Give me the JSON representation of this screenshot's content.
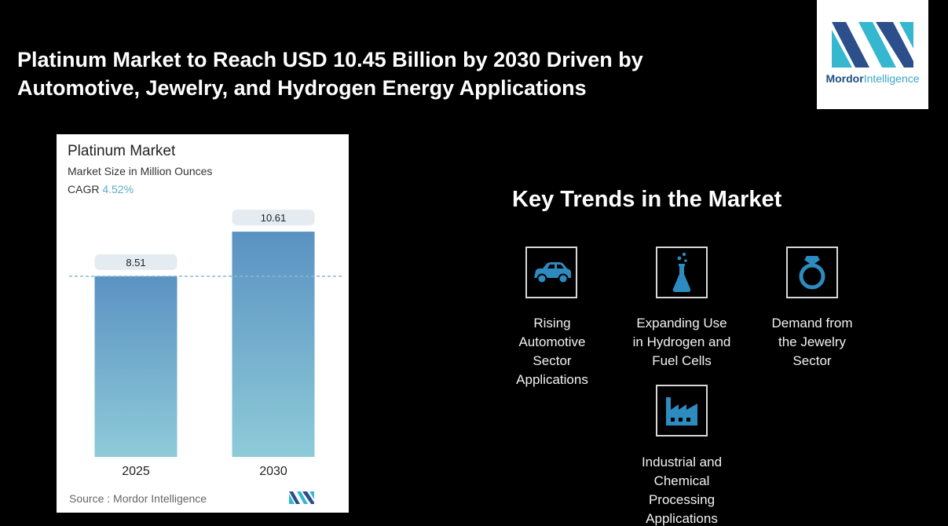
{
  "headline": {
    "line1": "Platinum Market to Reach USD 10.45 Billion by 2030 Driven by",
    "line2": "Automotive, Jewelry, and Hydrogen Energy Applications"
  },
  "logo": {
    "word1": "Mordor",
    "word2": "Intelligence",
    "icon": "mordor-intelligence-logo"
  },
  "chart_data": {
    "type": "bar",
    "title": "Platinum Market",
    "subtitle": "Market Size in Million Ounces",
    "cagr_label": "CAGR",
    "cagr_value": "4.52%",
    "categories": [
      "2025",
      "2030"
    ],
    "values": [
      8.51,
      10.61
    ],
    "data_labels": [
      "8.51",
      "10.61"
    ],
    "ylim": [
      0,
      11.5
    ],
    "reference_line": 8.51,
    "grid": false,
    "source": "Source :  Mordor Intelligence",
    "colors": {
      "bar_top": "#5a92c2",
      "bar_bottom": "#8ecbd9",
      "label_bg": "#e4ecf2",
      "ref_line": "#8ab9cc"
    }
  },
  "trends": {
    "title": "Key Trends in the Market",
    "items": [
      {
        "icon": "car-icon",
        "label_lines": [
          "Rising",
          "Automotive",
          "Sector",
          "Applications"
        ]
      },
      {
        "icon": "flask-icon",
        "label_lines": [
          "Expanding Use",
          "in Hydrogen and",
          "Fuel Cells"
        ]
      },
      {
        "icon": "ring-icon",
        "label_lines": [
          "Demand from",
          "the Jewelry",
          "Sector"
        ]
      },
      {
        "icon": "factory-icon",
        "label_lines": [
          "Industrial and",
          "Chemical",
          "Processing",
          "Applications"
        ]
      }
    ],
    "icon_color": "#2e8bc0"
  }
}
